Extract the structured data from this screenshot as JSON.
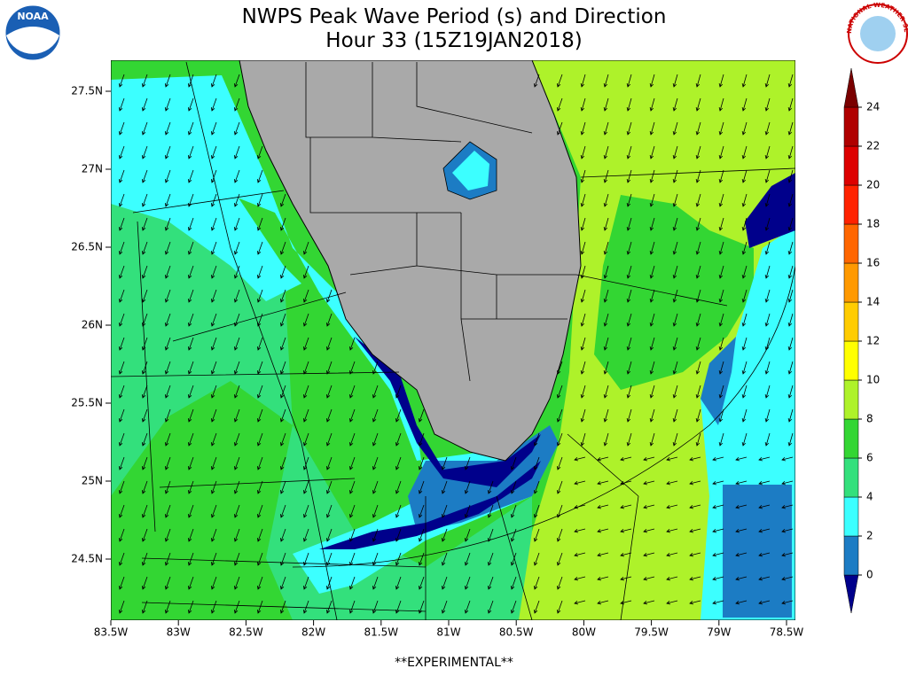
{
  "header": {
    "title": "NWPS Peak Wave Period (s) and Direction",
    "subtitle": "Hour 33 (15Z19JAN2018)"
  },
  "logos": {
    "noaa": "NOAA",
    "nws": "NATIONAL WEATHER SERVICE"
  },
  "map": {
    "lat_labels": [
      "27.5N",
      "27N",
      "26.5N",
      "26N",
      "25.5N",
      "25N",
      "24.5N"
    ],
    "lon_labels": [
      "83.5W",
      "83W",
      "82.5W",
      "82W",
      "81.5W",
      "81W",
      "80.5W",
      "80W",
      "79.5W",
      "79W",
      "78.5W"
    ]
  },
  "colorbar": {
    "levels": [
      0,
      2,
      4,
      6,
      8,
      10,
      12,
      14,
      16,
      18,
      20,
      22,
      24
    ],
    "colors": [
      "#00008b",
      "#1c7cc4",
      "#3cffff",
      "#33e07c",
      "#33d633",
      "#aef22a",
      "#ffff00",
      "#ffcc00",
      "#ff9900",
      "#ff6600",
      "#ff2200",
      "#dd0000",
      "#b00000",
      "#7a0000"
    ]
  },
  "footer": "**EXPERIMENTAL**"
}
